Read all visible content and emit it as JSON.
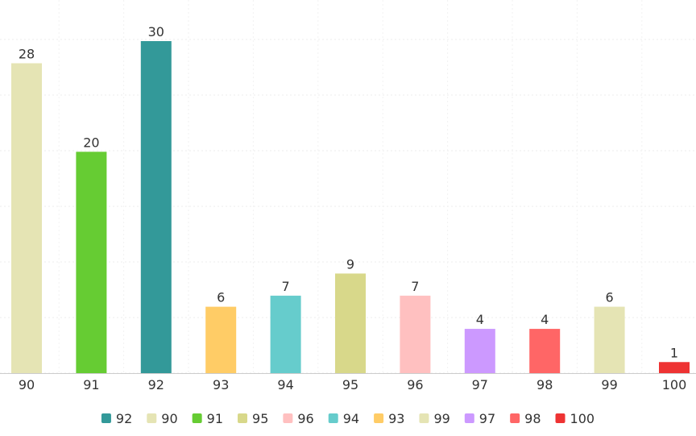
{
  "chart_data": {
    "type": "bar",
    "title": "",
    "xlabel": "",
    "ylabel": "",
    "ylim": [
      0,
      30
    ],
    "grid": true,
    "legend_position": "bottom",
    "categories": [
      "90",
      "91",
      "92",
      "93",
      "94",
      "95",
      "96",
      "97",
      "98",
      "99",
      "100"
    ],
    "values": [
      28,
      20,
      30,
      6,
      7,
      9,
      7,
      4,
      4,
      6,
      1
    ],
    "colors": [
      "#e5e4b4",
      "#66cc33",
      "#339999",
      "#ffcc66",
      "#66cccc",
      "#d8d88a",
      "#ffc0c0",
      "#cc99ff",
      "#ff6666",
      "#e5e4b4",
      "#ee3333"
    ],
    "legend": [
      {
        "label": "92",
        "color": "#339999"
      },
      {
        "label": "90",
        "color": "#e5e4b4"
      },
      {
        "label": "91",
        "color": "#66cc33"
      },
      {
        "label": "95",
        "color": "#d8d88a"
      },
      {
        "label": "96",
        "color": "#ffc0c0"
      },
      {
        "label": "94",
        "color": "#66cccc"
      },
      {
        "label": "93",
        "color": "#ffcc66"
      },
      {
        "label": "99",
        "color": "#e5e4b4"
      },
      {
        "label": "97",
        "color": "#cc99ff"
      },
      {
        "label": "98",
        "color": "#ff6666"
      },
      {
        "label": "100",
        "color": "#ee3333"
      }
    ]
  }
}
